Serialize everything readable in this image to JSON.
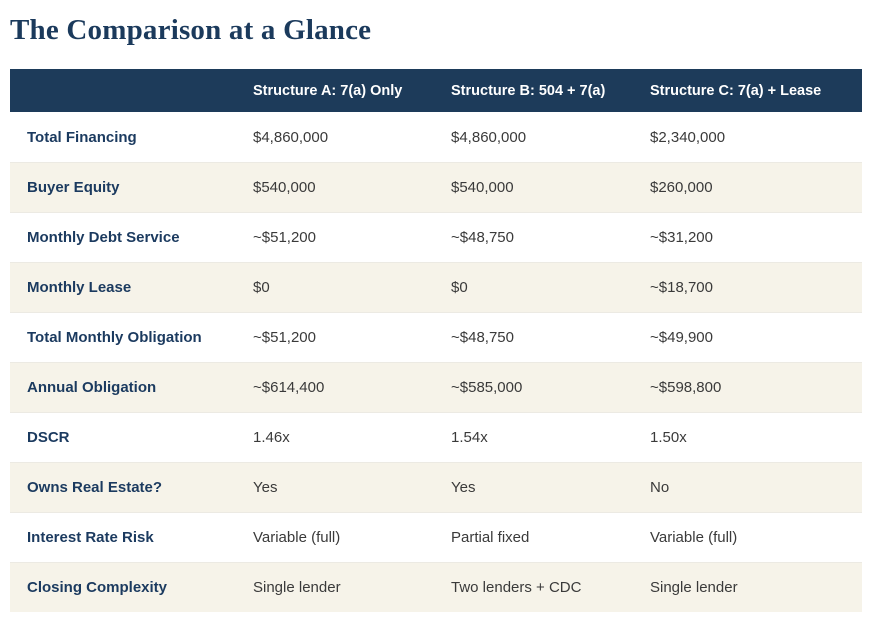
{
  "page": {
    "title": "The Comparison at a Glance"
  },
  "colors": {
    "header_bg": "#1d3b5a",
    "title_navy": "#1b3a5c",
    "label_navy": "#1b3a5f",
    "alt_row_bg": "#f6f3e9",
    "value_text": "#3a3a3a"
  },
  "table": {
    "columns": {
      "label": "",
      "a": "Structure A: 7(a) Only",
      "b": "Structure B: 504 + 7(a)",
      "c": "Structure C: 7(a) + Lease"
    },
    "rows": [
      {
        "label": "Total Financing",
        "a": "$4,860,000",
        "b": "$4,860,000",
        "c": "$2,340,000"
      },
      {
        "label": "Buyer Equity",
        "a": "$540,000",
        "b": "$540,000",
        "c": "$260,000"
      },
      {
        "label": "Monthly Debt Service",
        "a": "~$51,200",
        "b": "~$48,750",
        "c": "~$31,200"
      },
      {
        "label": "Monthly Lease",
        "a": "$0",
        "b": "$0",
        "c": "~$18,700"
      },
      {
        "label": "Total Monthly Obligation",
        "a": "~$51,200",
        "b": "~$48,750",
        "c": "~$49,900"
      },
      {
        "label": "Annual Obligation",
        "a": "~$614,400",
        "b": "~$585,000",
        "c": "~$598,800"
      },
      {
        "label": "DSCR",
        "a": "1.46x",
        "b": "1.54x",
        "c": "1.50x"
      },
      {
        "label": "Owns Real Estate?",
        "a": "Yes",
        "b": "Yes",
        "c": "No"
      },
      {
        "label": "Interest Rate Risk",
        "a": "Variable (full)",
        "b": "Partial fixed",
        "c": "Variable (full)"
      },
      {
        "label": "Closing Complexity",
        "a": "Single lender",
        "b": "Two lenders + CDC",
        "c": "Single lender"
      }
    ]
  }
}
